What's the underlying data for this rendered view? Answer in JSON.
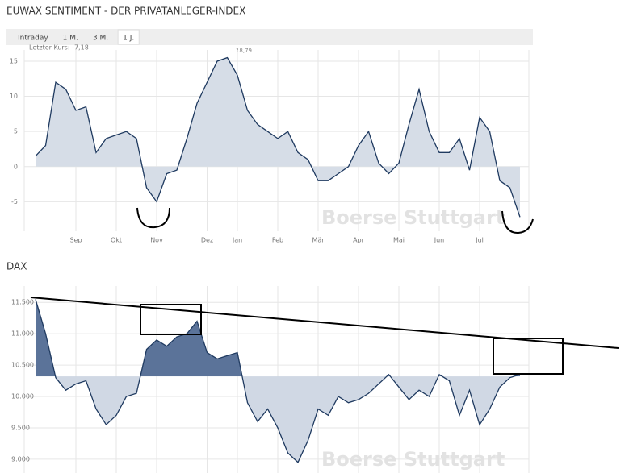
{
  "buttons": [
    "Intraday",
    "1 M.",
    "3 M.",
    "1 J."
  ],
  "chart_data": [
    {
      "type": "area",
      "title": "EUWAX SENTIMENT - DER PRIVATANLEGER-INDEX",
      "annotations": [
        "Letzter Kurs: -7,18",
        "18,79"
      ],
      "watermark": "Boerse Stuttgart",
      "categories": [
        null,
        null,
        null,
        null,
        "Sep",
        null,
        null,
        null,
        "Okt",
        null,
        null,
        null,
        "Nov",
        null,
        null,
        null,
        null,
        "Dez",
        null,
        null,
        "Jan",
        null,
        null,
        null,
        "Feb",
        null,
        null,
        null,
        "Mär",
        null,
        null,
        null,
        "Apr",
        null,
        null,
        null,
        "Mai",
        null,
        null,
        null,
        "Jun",
        null,
        null,
        null,
        "Jul",
        null,
        null,
        null,
        null
      ],
      "values": [
        1.5,
        3,
        12,
        11,
        8,
        8.5,
        2,
        4,
        4.5,
        5,
        4,
        -3,
        -5,
        -1,
        -0.5,
        4,
        9,
        12,
        15,
        15.5,
        13,
        8,
        6,
        5,
        4,
        5,
        2,
        1,
        -2,
        -2,
        -1,
        0,
        3,
        5,
        0.5,
        -1,
        0.5,
        6,
        11,
        5,
        2,
        2,
        4,
        -0.5,
        7,
        5,
        -2,
        -3,
        -7.18
      ],
      "color": "#1f3a60",
      "fill": "#d6dde7",
      "baseline": 0,
      "ylim": [
        -9.2,
        16.6
      ],
      "yticks": [
        -5,
        0,
        5,
        10,
        15
      ],
      "grid": true
    },
    {
      "type": "area",
      "title": "DAX",
      "watermark": "Boerse Stuttgart",
      "values": [
        11550,
        11000,
        10300,
        10100,
        10200,
        10250,
        9800,
        9550,
        9700,
        10000,
        10050,
        10750,
        10900,
        10800,
        10950,
        11000,
        11200,
        10700,
        10600,
        10650,
        10700,
        9900,
        9600,
        9800,
        9500,
        9100,
        8950,
        9300,
        9800,
        9700,
        10000,
        9900,
        9950,
        10050,
        10200,
        10350,
        10150,
        9950,
        10100,
        10000,
        10350,
        10250,
        9700,
        10100,
        9550,
        9800,
        10150,
        10300,
        10350
      ],
      "color": "#1f3a60",
      "fill": "#d0d8e4",
      "fill_above": "#5b7399",
      "baseline": 10320,
      "ylim": [
        8780,
        11760
      ],
      "yticks": [
        {
          "value": 9000,
          "label": "9.000"
        },
        {
          "value": 9500,
          "label": "9.500"
        },
        {
          "value": 10000,
          "label": "10.000"
        },
        {
          "value": 10500,
          "label": "10.500"
        },
        {
          "value": 11000,
          "label": "11.000"
        },
        {
          "value": 11500,
          "label": "11.500"
        }
      ],
      "grid": true
    }
  ]
}
